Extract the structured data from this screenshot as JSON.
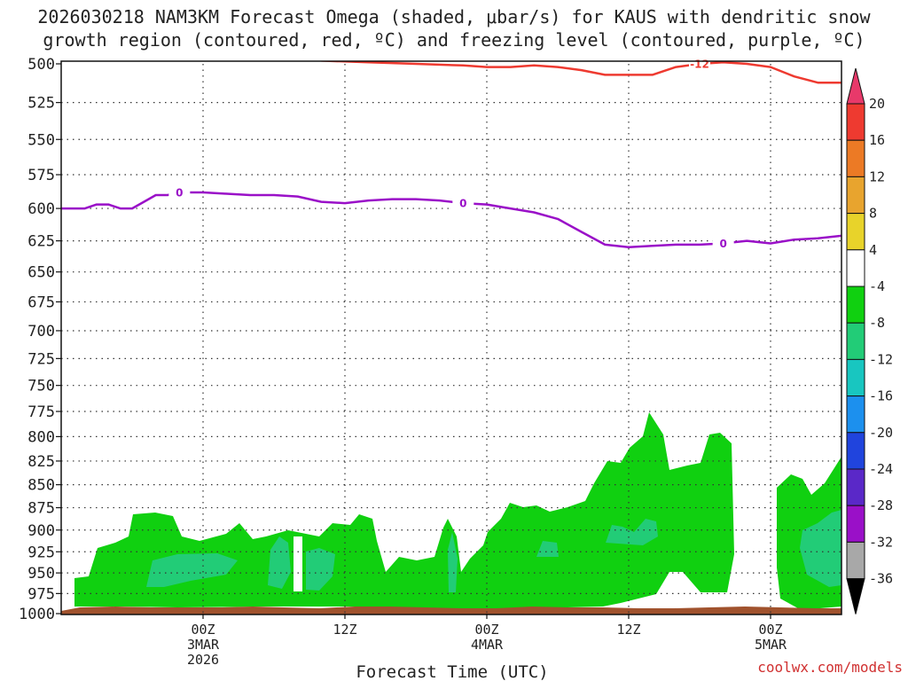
{
  "chart_data": {
    "type": "contour-timeheight",
    "title_line1": "2026030218 NAM3KM Forecast Omega (shaded, μbar/s) for KAUS with dendritic snow",
    "title_line2": "growth region (contoured, red, ºC) and freezing level (contoured, purple, ºC)",
    "xlabel": "Forecast Time (UTC)",
    "credit": "coolwx.com/models",
    "credit_color": "#d03030",
    "x_range_hours": [
      -6,
      60
    ],
    "y_range_mb": [
      500,
      1000
    ],
    "y_ticks": [
      500,
      525,
      550,
      575,
      600,
      625,
      650,
      675,
      700,
      725,
      750,
      775,
      800,
      825,
      850,
      875,
      900,
      925,
      950,
      975,
      1000
    ],
    "x_ticks": [
      {
        "hour": 6,
        "l1": "00Z",
        "l2": "3MAR",
        "l3": "2026"
      },
      {
        "hour": 18,
        "l1": "12Z",
        "l2": "",
        "l3": ""
      },
      {
        "hour": 30,
        "l1": "00Z",
        "l2": "4MAR",
        "l3": ""
      },
      {
        "hour": 42,
        "l1": "12Z",
        "l2": "",
        "l3": ""
      },
      {
        "hour": 54,
        "l1": "00Z",
        "l2": "5MAR",
        "l3": ""
      }
    ],
    "colorbar": {
      "labels": [
        "20",
        "16",
        "12",
        "8",
        "4",
        "-4",
        "-8",
        "-12",
        "-16",
        "-20",
        "-24",
        "-28",
        "-32",
        "-36"
      ],
      "colors": [
        "#e8396a",
        "#ee3a30",
        "#ec7a25",
        "#e8a42e",
        "#e8d32a",
        "#ffffff",
        "#10d010",
        "#22cc77",
        "#18c6c0",
        "#1c90ee",
        "#2044dd",
        "#5a28c8",
        "#9a10c8",
        "#a8a8a8",
        "#000000"
      ]
    },
    "freezing_level": {
      "name": "Freezing level (0 ºC)",
      "color": "#9a10c8",
      "label": "0",
      "hours": [
        -6,
        -5,
        -4,
        -3,
        -2,
        -1,
        0,
        1,
        2,
        3,
        4,
        5,
        6,
        8,
        10,
        12,
        14,
        16,
        18,
        20,
        22,
        24,
        26,
        28,
        30,
        32,
        34,
        36,
        38,
        40,
        42,
        44,
        46,
        48,
        50,
        52,
        54,
        56,
        58,
        60
      ],
      "pressure_mb": [
        600,
        600,
        600,
        597,
        597,
        600,
        600,
        595,
        590,
        590,
        588,
        588,
        588,
        589,
        590,
        590,
        591,
        595,
        596,
        594,
        593,
        593,
        594,
        596,
        597,
        600,
        603,
        608,
        618,
        628,
        630,
        629,
        628,
        628,
        627,
        625,
        627,
        624,
        623,
        621
      ]
    },
    "dgz_isotherm": {
      "name": "-12 ºC isotherm",
      "color": "#ee3a30",
      "label": "-12",
      "hours": [
        16,
        20,
        24,
        28,
        30,
        32,
        34,
        36,
        38,
        40,
        44,
        46,
        48,
        50,
        52,
        54,
        56,
        58,
        60
      ],
      "pressure_mb": [
        498,
        499,
        500,
        501,
        502,
        502,
        501,
        502,
        504,
        507,
        507,
        502,
        500,
        499,
        500,
        502,
        508,
        512,
        512
      ]
    },
    "ground": {
      "name": "terrain below ground",
      "color": "#a0522d",
      "pressure_mb": 990
    }
  }
}
